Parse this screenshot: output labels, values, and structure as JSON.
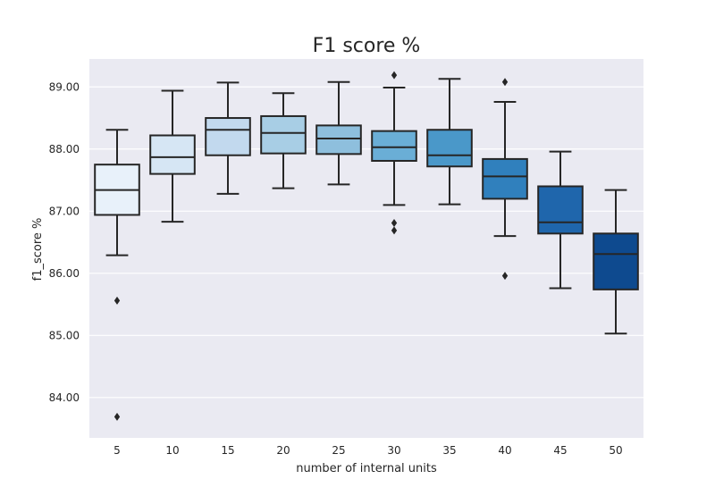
{
  "chart_data": {
    "type": "box",
    "title": "F1 score %",
    "xlabel": "number of internal units",
    "ylabel": "f1_score %",
    "ylim": [
      83.35,
      89.45
    ],
    "yticks": [
      "84.00",
      "85.00",
      "86.00",
      "87.00",
      "88.00",
      "89.00"
    ],
    "categories": [
      "5",
      "10",
      "15",
      "20",
      "25",
      "30",
      "35",
      "40",
      "45",
      "50"
    ],
    "grid": true,
    "background_color": "#eaeaf2",
    "boxes": [
      {
        "category": "5",
        "whisker_low": 86.29,
        "q1": 86.94,
        "median": 87.34,
        "q3": 87.75,
        "whisker_high": 88.31,
        "outliers": [
          85.56,
          83.69
        ],
        "color": "#e8f1fa"
      },
      {
        "category": "10",
        "whisker_low": 86.83,
        "q1": 87.6,
        "median": 87.87,
        "q3": 88.22,
        "whisker_high": 88.94,
        "outliers": [],
        "color": "#d6e6f4"
      },
      {
        "category": "15",
        "whisker_low": 87.28,
        "q1": 87.9,
        "median": 88.31,
        "q3": 88.5,
        "whisker_high": 89.07,
        "outliers": [],
        "color": "#c2d9ee"
      },
      {
        "category": "20",
        "whisker_low": 87.37,
        "q1": 87.93,
        "median": 88.26,
        "q3": 88.53,
        "whisker_high": 88.9,
        "outliers": [],
        "color": "#a8cee5"
      },
      {
        "category": "25",
        "whisker_low": 87.43,
        "q1": 87.92,
        "median": 88.17,
        "q3": 88.38,
        "whisker_high": 89.08,
        "outliers": [],
        "color": "#8ebfdd"
      },
      {
        "category": "30",
        "whisker_low": 87.1,
        "q1": 87.81,
        "median": 88.03,
        "q3": 88.29,
        "whisker_high": 88.99,
        "outliers": [
          89.19,
          86.81,
          86.69
        ],
        "color": "#6aaed6"
      },
      {
        "category": "35",
        "whisker_low": 87.11,
        "q1": 87.72,
        "median": 87.9,
        "q3": 88.31,
        "whisker_high": 89.13,
        "outliers": [],
        "color": "#4a98c9"
      },
      {
        "category": "40",
        "whisker_low": 86.6,
        "q1": 87.2,
        "median": 87.56,
        "q3": 87.84,
        "whisker_high": 88.76,
        "outliers": [
          89.08,
          85.96
        ],
        "color": "#3080bd"
      },
      {
        "category": "45",
        "whisker_low": 85.76,
        "q1": 86.64,
        "median": 86.82,
        "q3": 87.4,
        "whisker_high": 87.96,
        "outliers": [],
        "color": "#1f66ac"
      },
      {
        "category": "50",
        "whisker_low": 85.03,
        "q1": 85.74,
        "median": 86.31,
        "q3": 86.64,
        "whisker_high": 87.34,
        "outliers": [],
        "color": "#0e4a8f"
      }
    ]
  }
}
